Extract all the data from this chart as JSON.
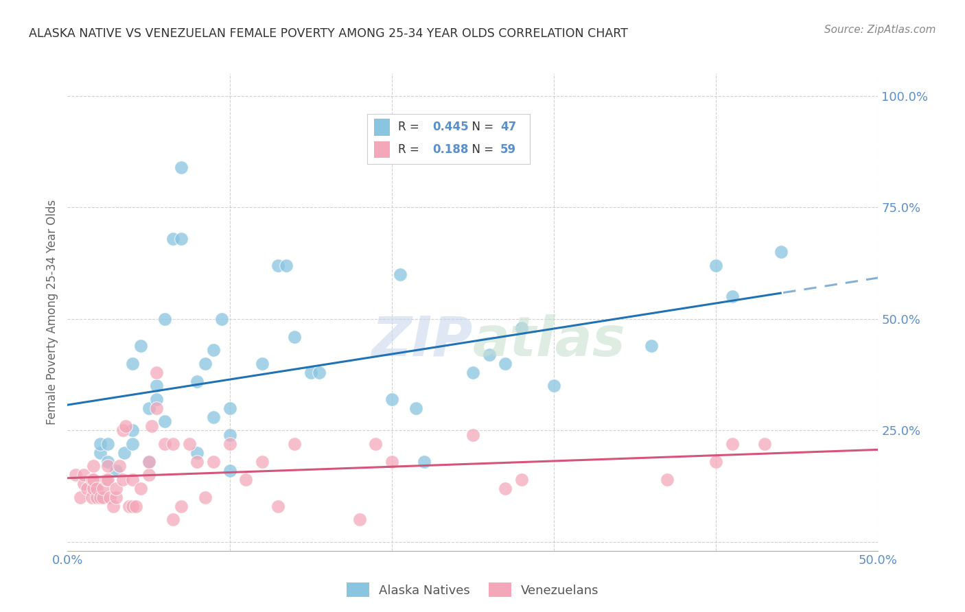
{
  "title": "ALASKA NATIVE VS VENEZUELAN FEMALE POVERTY AMONG 25-34 YEAR OLDS CORRELATION CHART",
  "source": "Source: ZipAtlas.com",
  "ylabel": "Female Poverty Among 25-34 Year Olds",
  "xlim": [
    0.0,
    0.5
  ],
  "ylim": [
    -0.02,
    1.05
  ],
  "yticks": [
    0.0,
    0.25,
    0.5,
    0.75,
    1.0
  ],
  "xticks": [
    0.0,
    0.1,
    0.2,
    0.3,
    0.4,
    0.5
  ],
  "xtick_labels": [
    "0.0%",
    "",
    "",
    "",
    "",
    "50.0%"
  ],
  "ytick_labels_right": [
    "",
    "25.0%",
    "50.0%",
    "75.0%",
    "100.0%"
  ],
  "blue_R": 0.445,
  "blue_N": 47,
  "pink_R": 0.188,
  "pink_N": 59,
  "blue_color": "#89c4e1",
  "pink_color": "#f4a7b9",
  "line_blue": "#2171b5",
  "line_pink": "#d6547a",
  "background_color": "#ffffff",
  "grid_color": "#d0d0d0",
  "tick_label_color": "#5b8fcc",
  "blue_x": [
    0.02,
    0.02,
    0.025,
    0.025,
    0.03,
    0.035,
    0.04,
    0.04,
    0.04,
    0.045,
    0.05,
    0.05,
    0.055,
    0.055,
    0.06,
    0.06,
    0.065,
    0.07,
    0.07,
    0.08,
    0.08,
    0.085,
    0.09,
    0.09,
    0.095,
    0.1,
    0.1,
    0.1,
    0.12,
    0.13,
    0.135,
    0.14,
    0.15,
    0.155,
    0.2,
    0.205,
    0.215,
    0.22,
    0.25,
    0.26,
    0.27,
    0.28,
    0.3,
    0.36,
    0.4,
    0.41,
    0.44
  ],
  "blue_y": [
    0.2,
    0.22,
    0.18,
    0.22,
    0.16,
    0.2,
    0.22,
    0.25,
    0.4,
    0.44,
    0.18,
    0.3,
    0.32,
    0.35,
    0.27,
    0.5,
    0.68,
    0.68,
    0.84,
    0.2,
    0.36,
    0.4,
    0.28,
    0.43,
    0.5,
    0.16,
    0.24,
    0.3,
    0.4,
    0.62,
    0.62,
    0.46,
    0.38,
    0.38,
    0.32,
    0.6,
    0.3,
    0.18,
    0.38,
    0.42,
    0.4,
    0.48,
    0.35,
    0.44,
    0.62,
    0.55,
    0.65
  ],
  "pink_x": [
    0.005,
    0.008,
    0.01,
    0.01,
    0.012,
    0.015,
    0.015,
    0.016,
    0.016,
    0.016,
    0.018,
    0.018,
    0.02,
    0.022,
    0.022,
    0.024,
    0.025,
    0.025,
    0.026,
    0.028,
    0.03,
    0.03,
    0.032,
    0.034,
    0.034,
    0.036,
    0.038,
    0.04,
    0.04,
    0.042,
    0.045,
    0.05,
    0.05,
    0.052,
    0.055,
    0.055,
    0.06,
    0.065,
    0.065,
    0.07,
    0.075,
    0.08,
    0.085,
    0.09,
    0.1,
    0.11,
    0.12,
    0.13,
    0.14,
    0.18,
    0.19,
    0.2,
    0.25,
    0.27,
    0.28,
    0.37,
    0.4,
    0.41,
    0.43
  ],
  "pink_y": [
    0.15,
    0.1,
    0.13,
    0.15,
    0.12,
    0.1,
    0.14,
    0.12,
    0.14,
    0.17,
    0.1,
    0.12,
    0.1,
    0.1,
    0.12,
    0.14,
    0.14,
    0.17,
    0.1,
    0.08,
    0.1,
    0.12,
    0.17,
    0.25,
    0.14,
    0.26,
    0.08,
    0.08,
    0.14,
    0.08,
    0.12,
    0.15,
    0.18,
    0.26,
    0.3,
    0.38,
    0.22,
    0.05,
    0.22,
    0.08,
    0.22,
    0.18,
    0.1,
    0.18,
    0.22,
    0.14,
    0.18,
    0.08,
    0.22,
    0.05,
    0.22,
    0.18,
    0.24,
    0.12,
    0.14,
    0.14,
    0.18,
    0.22,
    0.22
  ]
}
